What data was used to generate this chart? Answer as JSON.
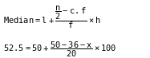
{
  "line1": "Median $=$ $l$ $+$ $\\dfrac{\\dfrac{n}{2} - c.f}{f}$ $\\times$ $h$",
  "line2": "$52.5 = 50 + \\dfrac{50 - 36 - x}{20} \\times 100$",
  "bg_color": "#ffffff",
  "text_color": "#000000",
  "fig_width": 1.87,
  "fig_height": 0.73,
  "dpi": 100
}
